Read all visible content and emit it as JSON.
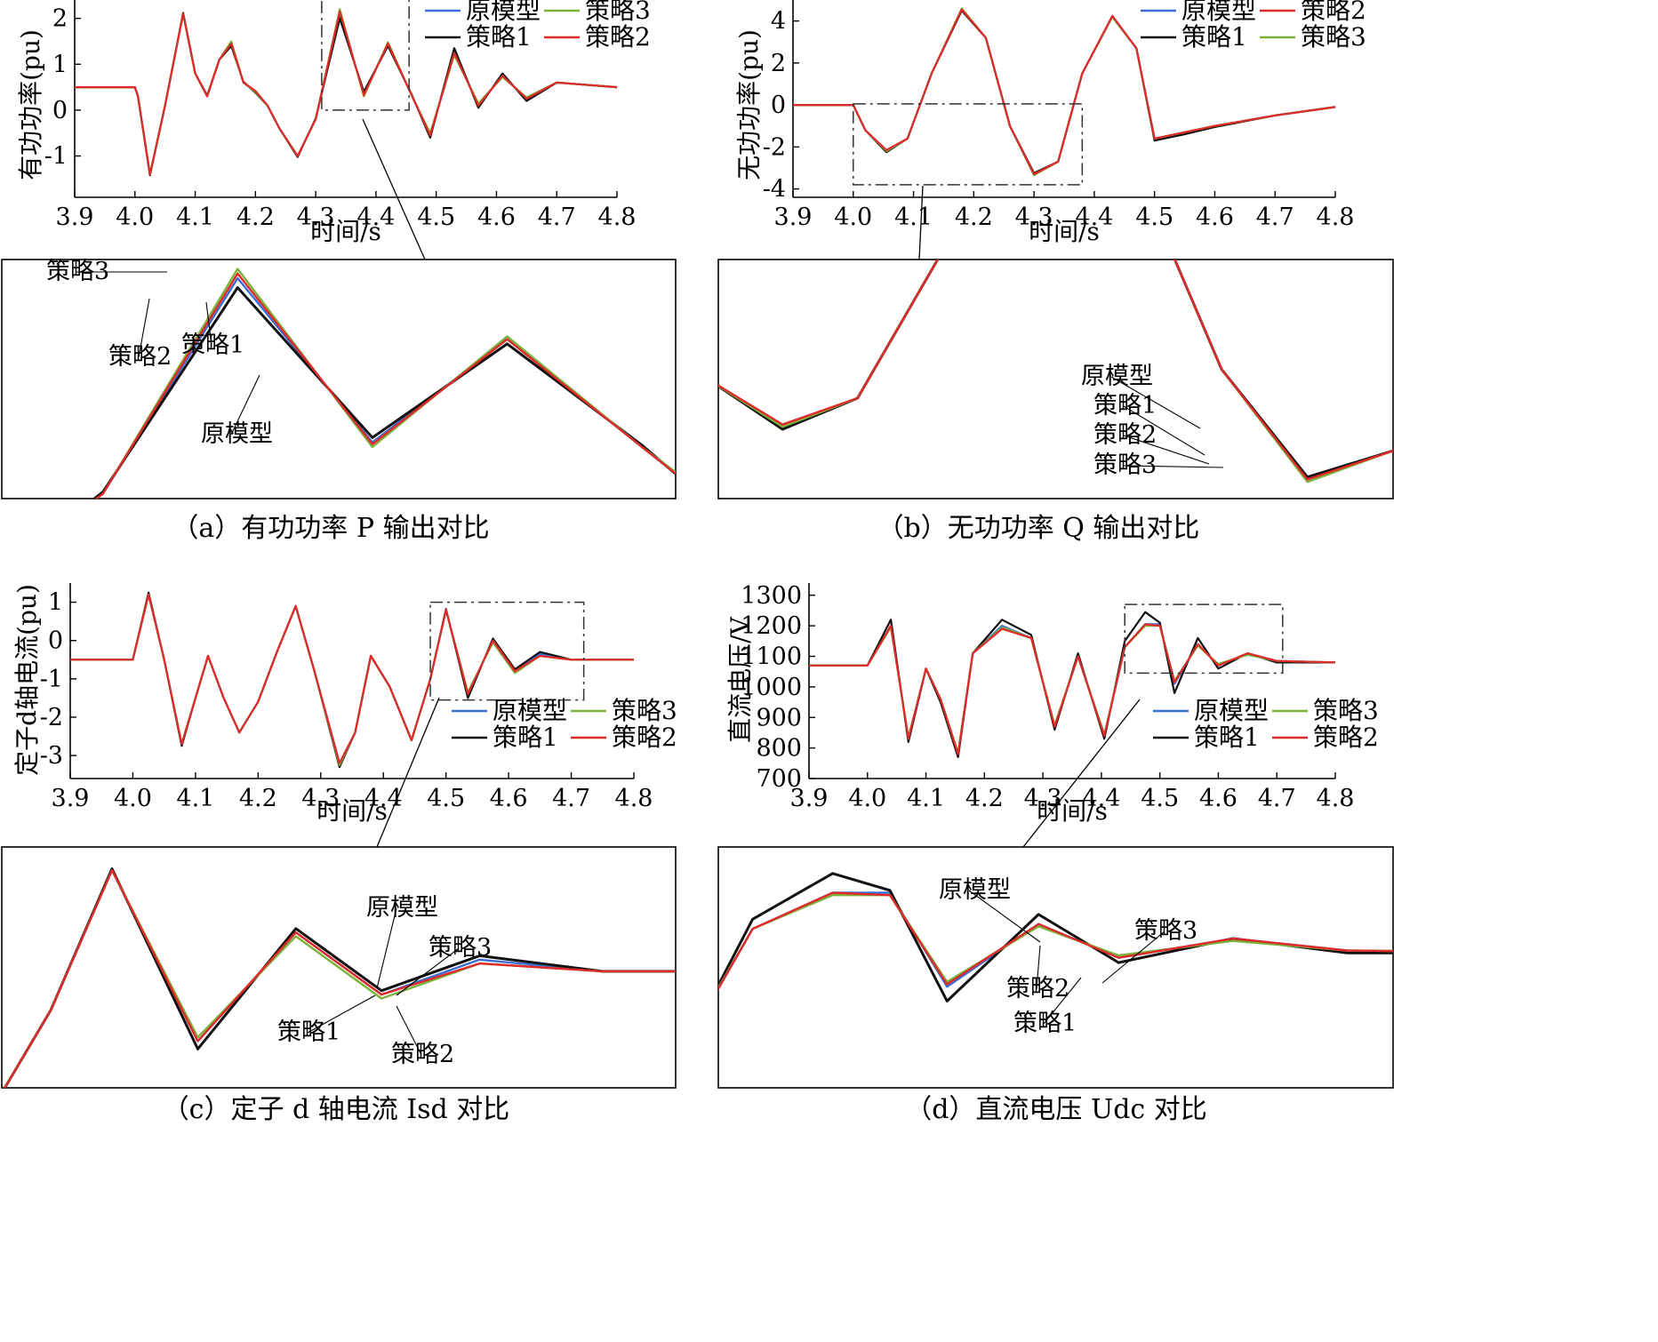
{
  "colors": {
    "原模型": "#3a6fd8",
    "策略1": "#111111",
    "策略2": "#e02a2a",
    "策略3": "#7bb33a"
  },
  "chart_data": [
    {
      "type": "line",
      "caption": "（a）有功功率 P 输出对比",
      "xlabel": "时间/s",
      "ylabel": "有功功率(pu)",
      "xlim": [
        3.9,
        4.8
      ],
      "ylim": [
        -1.9,
        2.4
      ],
      "xticks": [
        3.9,
        4.0,
        4.1,
        4.2,
        4.3,
        4.4,
        4.5,
        4.6,
        4.7,
        4.8
      ],
      "yticks": [
        -1,
        0,
        1,
        2
      ],
      "legend": [
        "原模型",
        "策略3",
        "策略1",
        "策略2"
      ],
      "zoom_box": [
        4.31,
        4.455,
        0.0,
        2.45
      ],
      "zoom_labels": [
        "策略3",
        "策略2",
        "策略1",
        "原模型"
      ],
      "x": [
        3.9,
        4.0,
        4.005,
        4.025,
        4.05,
        4.08,
        4.1,
        4.12,
        4.14,
        4.16,
        4.18,
        4.2,
        4.22,
        4.24,
        4.27,
        4.3,
        4.34,
        4.38,
        4.42,
        4.46,
        4.49,
        4.53,
        4.57,
        4.61,
        4.65,
        4.7,
        4.8
      ],
      "series": [
        {
          "name": "原模型",
          "values": [
            0.5,
            0.5,
            0.3,
            -1.4,
            0.1,
            2.1,
            0.8,
            0.3,
            1.1,
            1.45,
            0.6,
            0.4,
            0.1,
            -0.4,
            -1.0,
            -0.2,
            2.1,
            0.35,
            1.45,
            0.3,
            -0.55,
            1.3,
            0.1,
            0.75,
            0.25,
            0.6,
            0.5
          ]
        },
        {
          "name": "策略1",
          "values": [
            0.5,
            0.5,
            0.3,
            -1.42,
            0.1,
            2.12,
            0.8,
            0.32,
            1.1,
            1.4,
            0.62,
            0.38,
            0.1,
            -0.4,
            -1.02,
            -0.18,
            2.0,
            0.4,
            1.4,
            0.32,
            -0.6,
            1.35,
            0.05,
            0.8,
            0.2,
            0.6,
            0.5
          ]
        },
        {
          "name": "策略2",
          "values": [
            0.5,
            0.5,
            0.3,
            -1.4,
            0.1,
            2.1,
            0.8,
            0.3,
            1.1,
            1.45,
            0.6,
            0.42,
            0.1,
            -0.4,
            -1.0,
            -0.2,
            2.15,
            0.33,
            1.45,
            0.3,
            -0.55,
            1.25,
            0.1,
            0.75,
            0.25,
            0.6,
            0.5
          ]
        },
        {
          "name": "策略3",
          "values": [
            0.5,
            0.5,
            0.3,
            -1.4,
            0.1,
            2.1,
            0.8,
            0.3,
            1.1,
            1.5,
            0.6,
            0.4,
            0.1,
            -0.4,
            -1.0,
            -0.2,
            2.2,
            0.3,
            1.48,
            0.3,
            -0.5,
            1.2,
            0.15,
            0.72,
            0.28,
            0.6,
            0.5
          ]
        }
      ]
    },
    {
      "type": "line",
      "caption": "（b）无功功率 Q 输出对比",
      "xlabel": "时间/s",
      "ylabel": "无功功率(pu)",
      "xlim": [
        3.9,
        4.8
      ],
      "ylim": [
        -4.4,
        5.0
      ],
      "xticks": [
        3.9,
        4.0,
        4.1,
        4.2,
        4.3,
        4.4,
        4.5,
        4.6,
        4.7,
        4.8
      ],
      "yticks": [
        -4,
        -2,
        0,
        2,
        4
      ],
      "legend": [
        "原模型",
        "策略2",
        "策略1",
        "策略3"
      ],
      "zoom_box": [
        4.0,
        4.38,
        -3.8,
        0.05
      ],
      "zoom_labels": [
        "原模型",
        "策略1",
        "策略2",
        "策略3"
      ],
      "x": [
        3.9,
        4.0,
        4.02,
        4.055,
        4.09,
        4.13,
        4.18,
        4.22,
        4.26,
        4.3,
        4.34,
        4.38,
        4.43,
        4.47,
        4.5,
        4.55,
        4.6,
        4.7,
        4.8
      ],
      "series": [
        {
          "name": "原模型",
          "values": [
            0,
            0,
            -1.2,
            -2.2,
            -1.6,
            1.5,
            4.5,
            3.2,
            -1.0,
            -3.3,
            -2.7,
            1.5,
            4.2,
            2.7,
            -1.6,
            -1.3,
            -1.0,
            -0.5,
            -0.1
          ]
        },
        {
          "name": "策略1",
          "values": [
            0,
            0,
            -1.2,
            -2.25,
            -1.6,
            1.5,
            4.5,
            3.2,
            -1.0,
            -3.25,
            -2.7,
            1.5,
            4.2,
            2.7,
            -1.7,
            -1.4,
            -1.05,
            -0.5,
            -0.1
          ]
        },
        {
          "name": "策略2",
          "values": [
            0,
            0,
            -1.2,
            -2.15,
            -1.6,
            1.5,
            4.55,
            3.2,
            -1.0,
            -3.3,
            -2.7,
            1.5,
            4.25,
            2.7,
            -1.6,
            -1.3,
            -1.0,
            -0.5,
            -0.1
          ]
        },
        {
          "name": "策略3",
          "values": [
            0,
            0,
            -1.2,
            -2.2,
            -1.6,
            1.5,
            4.6,
            3.2,
            -1.0,
            -3.35,
            -2.7,
            1.5,
            4.2,
            2.7,
            -1.6,
            -1.3,
            -1.0,
            -0.5,
            -0.1
          ]
        }
      ]
    },
    {
      "type": "line",
      "caption": "（c）定子 d 轴电流 Isd 对比",
      "xlabel": "时间/s",
      "ylabel": "定子d轴电流(pu)",
      "xlim": [
        3.9,
        4.8
      ],
      "ylim": [
        -3.6,
        1.5
      ],
      "xticks": [
        3.9,
        4.0,
        4.1,
        4.2,
        4.3,
        4.4,
        4.5,
        4.6,
        4.7,
        4.8
      ],
      "yticks": [
        -3,
        -2,
        -1,
        0,
        1
      ],
      "legend": [
        "原模型",
        "策略3",
        "策略1",
        "策略2"
      ],
      "zoom_box": [
        4.475,
        4.72,
        -1.55,
        1.0
      ],
      "zoom_labels": [
        "原模型",
        "策略3",
        "策略1",
        "策略2"
      ],
      "x": [
        3.9,
        4.0,
        4.025,
        4.05,
        4.078,
        4.1,
        4.12,
        4.145,
        4.17,
        4.2,
        4.23,
        4.26,
        4.29,
        4.33,
        4.355,
        4.38,
        4.41,
        4.445,
        4.475,
        4.5,
        4.535,
        4.575,
        4.61,
        4.65,
        4.7,
        4.8
      ],
      "series": [
        {
          "name": "原模型",
          "values": [
            -0.5,
            -0.5,
            1.2,
            -0.5,
            -2.7,
            -1.5,
            -0.4,
            -1.5,
            -2.4,
            -1.6,
            -0.3,
            0.9,
            -0.8,
            -3.2,
            -2.4,
            -0.4,
            -1.2,
            -2.6,
            -1.0,
            0.8,
            -1.4,
            0.0,
            -0.8,
            -0.35,
            -0.5,
            -0.5
          ]
        },
        {
          "name": "策略1",
          "values": [
            -0.5,
            -0.5,
            1.25,
            -0.5,
            -2.75,
            -1.5,
            -0.4,
            -1.5,
            -2.4,
            -1.6,
            -0.3,
            0.9,
            -0.8,
            -3.3,
            -2.4,
            -0.4,
            -1.2,
            -2.6,
            -1.0,
            0.82,
            -1.5,
            0.05,
            -0.75,
            -0.3,
            -0.5,
            -0.5
          ]
        },
        {
          "name": "策略2",
          "values": [
            -0.5,
            -0.5,
            1.2,
            -0.5,
            -2.7,
            -1.5,
            -0.4,
            -1.5,
            -2.4,
            -1.6,
            -0.3,
            0.9,
            -0.8,
            -3.2,
            -2.4,
            -0.4,
            -1.2,
            -2.6,
            -1.0,
            0.8,
            -1.4,
            0.0,
            -0.8,
            -0.4,
            -0.5,
            -0.5
          ]
        },
        {
          "name": "策略3",
          "values": [
            -0.5,
            -0.5,
            1.2,
            -0.5,
            -2.7,
            -1.5,
            -0.4,
            -1.5,
            -2.4,
            -1.6,
            -0.3,
            0.9,
            -0.8,
            -3.25,
            -2.4,
            -0.4,
            -1.2,
            -2.6,
            -1.0,
            0.8,
            -1.35,
            -0.05,
            -0.85,
            -0.4,
            -0.5,
            -0.5
          ]
        }
      ]
    },
    {
      "type": "line",
      "caption": "（d）直流电压 Udc 对比",
      "xlabel": "时间/s",
      "ylabel": "直流电压/V",
      "xlim": [
        3.9,
        4.8
      ],
      "ylim": [
        700,
        1340
      ],
      "xticks": [
        3.9,
        4.0,
        4.1,
        4.2,
        4.3,
        4.4,
        4.5,
        4.6,
        4.7,
        4.8
      ],
      "yticks": [
        700,
        800,
        900,
        1000,
        1100,
        1200,
        1300
      ],
      "legend": [
        "原模型",
        "策略3",
        "策略1",
        "策略2"
      ],
      "zoom_box": [
        4.44,
        4.71,
        1045,
        1270
      ],
      "zoom_labels": [
        "原模型",
        "策略3",
        "策略2",
        "策略1"
      ],
      "x": [
        3.9,
        4.0,
        4.04,
        4.07,
        4.1,
        4.125,
        4.155,
        4.18,
        4.23,
        4.28,
        4.32,
        4.36,
        4.405,
        4.44,
        4.475,
        4.5,
        4.525,
        4.565,
        4.6,
        4.65,
        4.7,
        4.8
      ],
      "series": [
        {
          "name": "原模型",
          "values": [
            1070,
            1070,
            1200,
            830,
            1060,
            960,
            780,
            1110,
            1200,
            1160,
            870,
            1100,
            840,
            1130,
            1205,
            1205,
            1010,
            1140,
            1070,
            1110,
            1085,
            1080
          ]
        },
        {
          "name": "策略1",
          "values": [
            1070,
            1070,
            1220,
            820,
            1060,
            950,
            770,
            1110,
            1220,
            1170,
            860,
            1110,
            830,
            1150,
            1245,
            1210,
            980,
            1160,
            1060,
            1110,
            1080,
            1080
          ]
        },
        {
          "name": "策略2",
          "values": [
            1070,
            1070,
            1200,
            830,
            1060,
            960,
            780,
            1110,
            1190,
            1160,
            870,
            1100,
            840,
            1130,
            1205,
            1200,
            1015,
            1140,
            1070,
            1110,
            1085,
            1080
          ]
        },
        {
          "name": "策略3",
          "values": [
            1070,
            1070,
            1195,
            835,
            1060,
            960,
            785,
            1110,
            1195,
            1160,
            875,
            1100,
            845,
            1130,
            1200,
            1200,
            1020,
            1135,
            1075,
            1105,
            1085,
            1080
          ]
        }
      ]
    }
  ]
}
